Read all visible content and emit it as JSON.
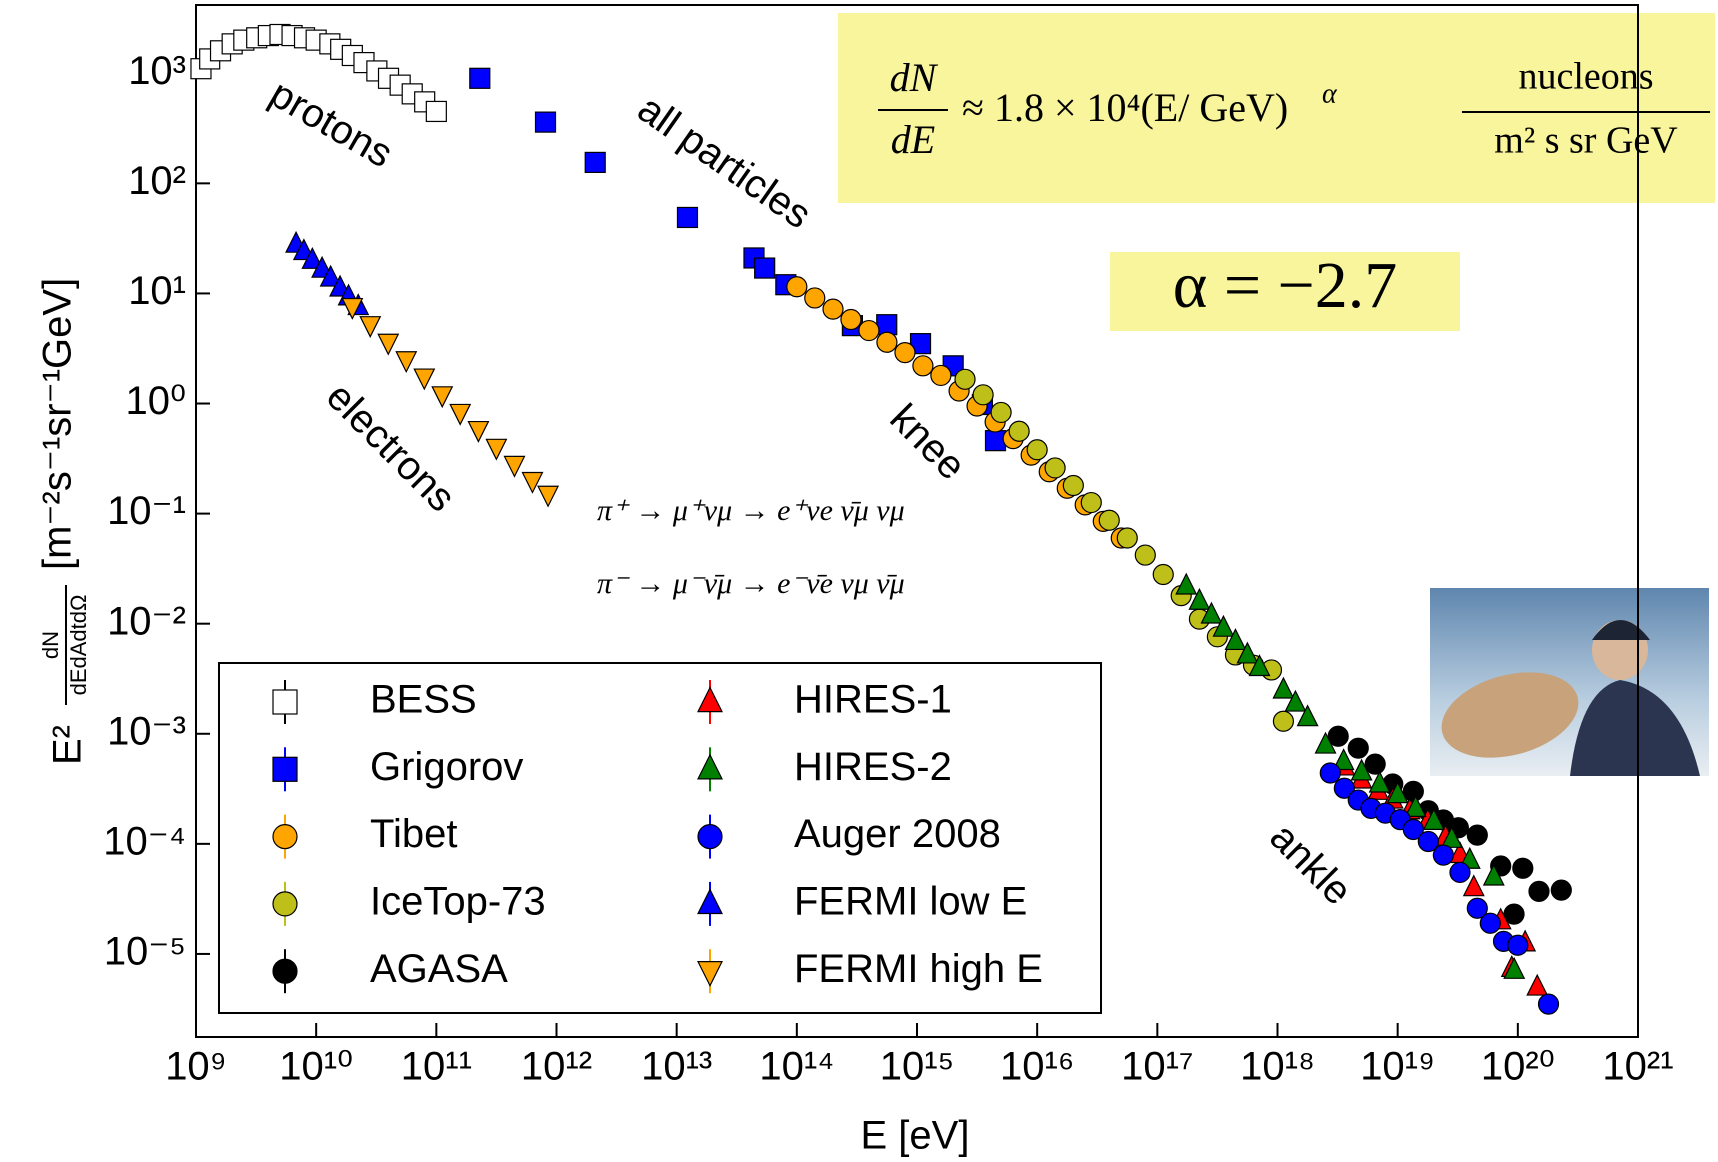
{
  "chart_data": {
    "type": "scatter",
    "x_label": "E [eV]",
    "y_label": {
      "prefix": "E²",
      "frac_num": "dN",
      "frac_den": "dEdAdtdΩ",
      "unit": "[m⁻²s⁻¹sr⁻¹GeV]"
    },
    "log_x": true,
    "log_y": true,
    "xlim": [
      1000000000.0,
      1e+21
    ],
    "ylim": [
      1.76e-06,
      4170
    ],
    "xticks": [
      {
        "value": 1000000000.0,
        "label": "10⁹"
      },
      {
        "value": 10000000000.0,
        "label": "10¹⁰"
      },
      {
        "value": 100000000000.0,
        "label": "10¹¹"
      },
      {
        "value": 1000000000000.0,
        "label": "10¹²"
      },
      {
        "value": 10000000000000.0,
        "label": "10¹³"
      },
      {
        "value": 100000000000000.0,
        "label": "10¹⁴"
      },
      {
        "value": 1000000000000000.0,
        "label": "10¹⁵"
      },
      {
        "value": 1e+16,
        "label": "10¹⁶"
      },
      {
        "value": 1e+17,
        "label": "10¹⁷"
      },
      {
        "value": 1e+18,
        "label": "10¹⁸"
      },
      {
        "value": 1e+19,
        "label": "10¹⁹"
      },
      {
        "value": 1e+20,
        "label": "10²⁰"
      },
      {
        "value": 1e+21,
        "label": "10²¹"
      }
    ],
    "yticks": [
      {
        "value": 1e-05,
        "label": "10⁻⁵"
      },
      {
        "value": 0.0001,
        "label": "10⁻⁴"
      },
      {
        "value": 0.001,
        "label": "10⁻³"
      },
      {
        "value": 0.01,
        "label": "10⁻²"
      },
      {
        "value": 0.1,
        "label": "10⁻¹"
      },
      {
        "value": 1,
        "label": "10⁰"
      },
      {
        "value": 10,
        "label": "10¹"
      },
      {
        "value": 100,
        "label": "10²"
      },
      {
        "value": 1000,
        "label": "10³"
      }
    ],
    "annotations": [
      "protons",
      "all particles",
      "electrons",
      "knee",
      "ankle"
    ],
    "formula": {
      "lhs_num": "dN",
      "lhs_den": "dE",
      "middle": "≈ 1.8 × 10⁴(E/ GeV)",
      "exponent": "α",
      "unit_num": "nucleons",
      "unit_den": "m² s sr GeV"
    },
    "alpha": "α = −2.7",
    "decays": [
      "π⁺    →    μ⁺νμ → e⁺νe ν̄μ νμ",
      "π⁻    →    μ⁻ν̄μ → e⁻ν̄e νμ ν̄μ"
    ],
    "series": [
      {
        "name": "BESS",
        "marker": "square",
        "color": "#ffffff",
        "x": [
          1100000000.0,
          1300000000.0,
          1600000000.0,
          2000000000.0,
          2500000000.0,
          3200000000.0,
          4000000000.0,
          5000000000.0,
          6300000000.0,
          8000000000.0,
          10000000000.0,
          13000000000.0,
          16000000000.0,
          20000000000.0,
          25000000000.0,
          32000000000.0,
          40000000000.0,
          50000000000.0,
          63000000000.0,
          80000000000.0,
          100000000000.0
        ],
        "values": [
          1100,
          1350,
          1600,
          1850,
          2000,
          2100,
          2200,
          2250,
          2200,
          2100,
          2000,
          1850,
          1650,
          1450,
          1250,
          1050,
          900,
          780,
          650,
          550,
          450
        ]
      },
      {
        "name": "Grigorov",
        "marker": "square",
        "color": "#0000ff",
        "x": [
          230000000000.0,
          810000000000.0,
          2100000000000.0,
          12300000000000.0,
          44000000000000.0,
          54000000000000.0,
          81000000000000.0,
          290000000000000.0,
          560000000000000.0,
          1070000000000000.0,
          2000000000000000.0,
          3500000000000000.0,
          4500000000000000.0
        ],
        "values": [
          900,
          360,
          155,
          49,
          21,
          17,
          12,
          5.1,
          5.2,
          3.5,
          2.2,
          0.98,
          0.46
        ]
      },
      {
        "name": "Tibet",
        "marker": "circle",
        "color": "#ffa500",
        "x": [
          100000000000000.0,
          141000000000000.0,
          200000000000000.0,
          282000000000000.0,
          398000000000000.0,
          562000000000000.0,
          794000000000000.0,
          1120000000000000.0,
          1580000000000000.0,
          2240000000000000.0,
          3160000000000000.0,
          4470000000000000.0,
          6310000000000000.0,
          8910000000000000.0,
          1.26e+16,
          1.78e+16,
          2.51e+16,
          3.55e+16,
          5.01e+16
        ],
        "values": [
          11.5,
          9.1,
          7.2,
          5.8,
          4.6,
          3.6,
          2.9,
          2.2,
          1.8,
          1.3,
          0.95,
          0.68,
          0.48,
          0.34,
          0.24,
          0.17,
          0.12,
          0.085,
          0.06
        ]
      },
      {
        "name": "IceTop-73",
        "marker": "circle",
        "color": "#bfbf1a",
        "x": [
          2510000000000000.0,
          3550000000000000.0,
          5010000000000000.0,
          7080000000000000.0,
          1e+16,
          1.41e+16,
          2e+16,
          2.82e+16,
          3.98e+16,
          5.62e+16,
          7.94e+16,
          1.12e+17,
          1.58e+17,
          2.24e+17,
          3.16e+17,
          4.47e+17,
          6.31e+17,
          8.91e+17,
          1.12e+18
        ],
        "values": [
          1.66,
          1.2,
          0.83,
          0.56,
          0.38,
          0.26,
          0.18,
          0.126,
          0.087,
          0.06,
          0.042,
          0.028,
          0.018,
          0.011,
          0.0076,
          0.0052,
          0.0042,
          0.0038,
          0.0013
        ]
      },
      {
        "name": "AGASA",
        "marker": "circle",
        "color": "#000000",
        "x": [
          3.2e+18,
          4.7e+18,
          6.5e+18,
          9.1e+18,
          1.35e+19,
          1.8e+19,
          2.4e+19,
          3.2e+19,
          4.6e+19,
          7.2e+19,
          9.3e+19,
          1.1e+20,
          1.5e+20,
          2.3e+20
        ],
        "values": [
          0.00095,
          0.00074,
          0.00053,
          0.00035,
          0.0003,
          0.0002,
          0.000165,
          0.00014,
          0.00012,
          6.3e-05,
          2.3e-05,
          6e-05,
          3.7e-05,
          3.8e-05
        ]
      },
      {
        "name": "HIRES-1",
        "marker": "triangle",
        "color": "#ff0000",
        "x": [
          3.6e+18,
          5e+18,
          6.9e+18,
          9.1e+18,
          1.26e+19,
          1.78e+19,
          2.5e+19,
          3.3e+19,
          4.3e+19,
          7.2e+19,
          8.9e+19,
          1.15e+20,
          1.45e+20
        ],
        "values": [
          0.0005,
          0.00038,
          0.0003,
          0.00025,
          0.0002,
          0.00016,
          0.000115,
          8e-05,
          4e-05,
          2e-05,
          7.4e-06,
          1.26e-05,
          5e-06
        ]
      },
      {
        "name": "HIRES-2",
        "marker": "triangle",
        "color": "#008000",
        "x": [
          1.74e+17,
          2.24e+17,
          2.82e+17,
          3.55e+17,
          4.47e+17,
          5.62e+17,
          7.08e+17,
          1.12e+18,
          1.41e+18,
          1.78e+18,
          2.51e+18,
          3.55e+18,
          5.01e+18,
          7.08e+18,
          1e+19,
          1.41e+19,
          2e+19,
          2.82e+19,
          3.98e+19,
          6.31e+19,
          9.33e+19
        ],
        "values": [
          0.022,
          0.016,
          0.012,
          0.0091,
          0.0069,
          0.0052,
          0.004,
          0.0025,
          0.0019,
          0.0014,
          0.00079,
          0.00056,
          0.00045,
          0.00035,
          0.00028,
          0.00021,
          0.00016,
          0.00011,
          7.1e-05,
          5e-05,
          7.1e-06
        ]
      },
      {
        "name": "Auger 2008",
        "marker": "circle",
        "color": "#0000ff",
        "x": [
          2.75e+18,
          3.6e+18,
          4.7e+18,
          6e+18,
          7.9e+18,
          1.05e+19,
          1.35e+19,
          1.8e+19,
          2.4e+19,
          3.3e+19,
          4.6e+19,
          5.9e+19,
          7.6e+19,
          1e+20,
          1.8e+20
        ],
        "values": [
          0.00044,
          0.00032,
          0.00025,
          0.00021,
          0.00019,
          0.000166,
          0.000135,
          0.000105,
          7.9e-05,
          5.5e-05,
          2.6e-05,
          1.9e-05,
          1.3e-05,
          1.2e-05,
          3.5e-06
        ]
      },
      {
        "name": "FERMI low E",
        "marker": "triangle",
        "color": "#0000ff",
        "x": [
          6800000000.0,
          7900000000.0,
          9300000000.0,
          11200000000.0,
          13200000000.0,
          15800000000.0,
          18600000000.0,
          22400000000.0
        ],
        "values": [
          28,
          24,
          20,
          16.6,
          13.8,
          11.2,
          9.3,
          7.6
        ]
      },
      {
        "name": "FERMI high E",
        "marker": "triangle-down",
        "color": "#ffa500",
        "x": [
          20000000000.0,
          28200000000.0,
          39800000000.0,
          56200000000.0,
          79400000000.0,
          112000000000.0,
          158000000000.0,
          224000000000.0,
          316000000000.0,
          447000000000.0,
          631000000000.0,
          851000000000.0
        ],
        "values": [
          7.6,
          5.2,
          3.6,
          2.5,
          1.74,
          1.2,
          0.83,
          0.58,
          0.4,
          0.28,
          0.2,
          0.15
        ]
      }
    ]
  }
}
